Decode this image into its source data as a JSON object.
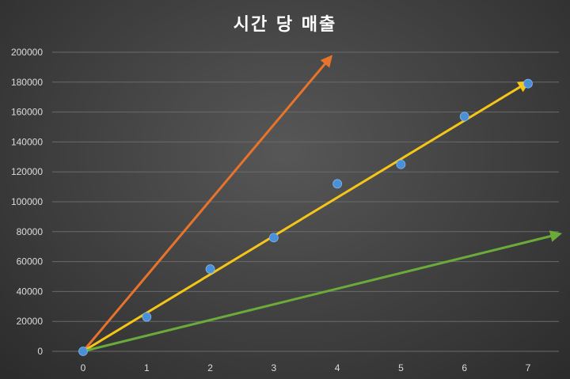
{
  "chart_data": {
    "type": "scatter",
    "title": "시간 당 매출",
    "xlabel": "",
    "ylabel": "",
    "xlim": [
      0,
      7
    ],
    "ylim": [
      0,
      200000
    ],
    "x_ticks": [
      "0",
      "1",
      "2",
      "3",
      "4",
      "5",
      "6",
      "7"
    ],
    "y_ticks": [
      "0",
      "20000",
      "40000",
      "60000",
      "80000",
      "100000",
      "120000",
      "140000",
      "160000",
      "180000",
      "200000"
    ],
    "grid": true,
    "legend": "none",
    "points": {
      "color": "#4a90d9",
      "x": [
        0,
        1,
        2,
        3,
        4,
        5,
        6,
        7
      ],
      "y": [
        0,
        23000,
        55000,
        76000,
        112000,
        125000,
        157000,
        179000
      ]
    },
    "arrows": [
      {
        "color": "#e8732a",
        "from": [
          0,
          0
        ],
        "to": [
          3.9,
          197000
        ]
      },
      {
        "color": "#f5c518",
        "from": [
          0,
          0
        ],
        "to": [
          7.0,
          180000
        ]
      },
      {
        "color": "#6aab3a",
        "from": [
          0,
          0
        ],
        "to": [
          7.5,
          78500
        ]
      }
    ]
  }
}
